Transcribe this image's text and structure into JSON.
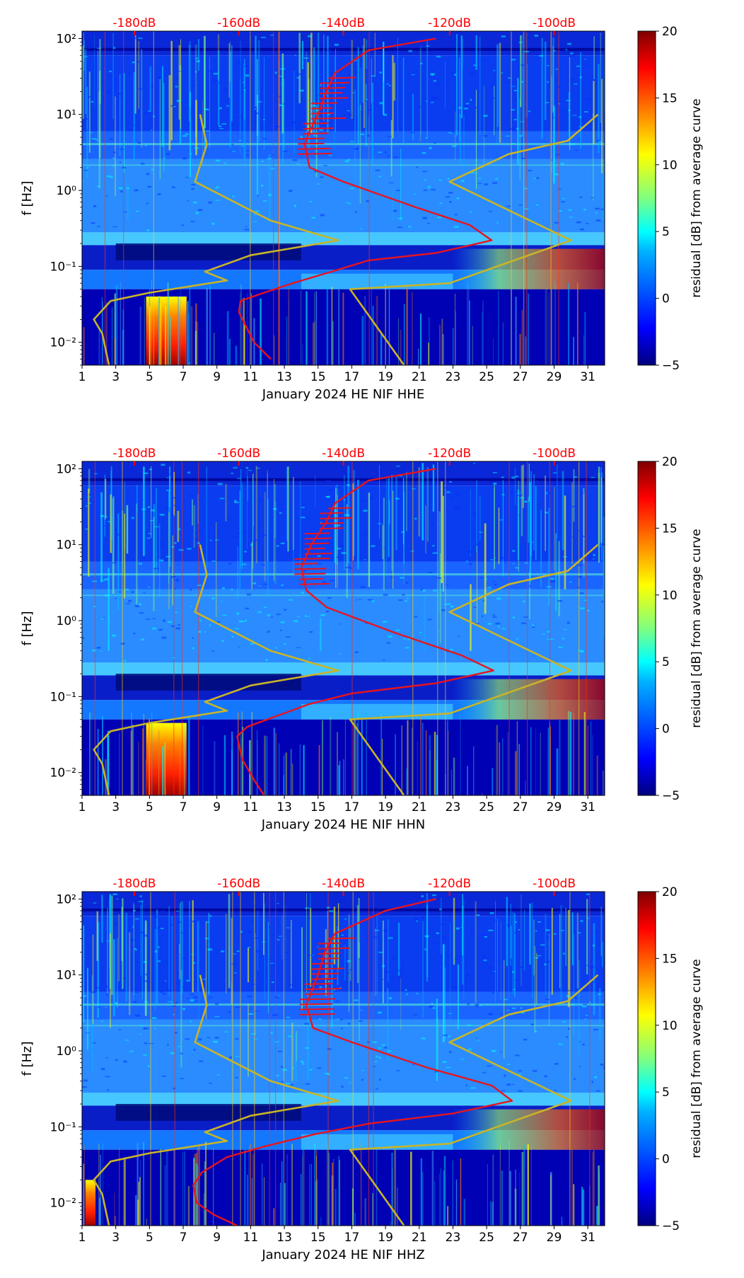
{
  "colors": {
    "jet": [
      "#00007f",
      "#0000ff",
      "#007fff",
      "#00ffff",
      "#7fff7f",
      "#ffff00",
      "#ff7f00",
      "#ff0000",
      "#7f0000"
    ],
    "noise_model": "#c8b428",
    "median_curve": "#e8141e",
    "db_axis": "#ff0000"
  },
  "chart_data": [
    {
      "type": "heatmap",
      "xlabel": "January 2024 HE NIF  HHE",
      "ylabel": "f [Hz]",
      "colorbar_label": "residual [dB] from average curve",
      "x_ticks": [
        1,
        3,
        5,
        7,
        9,
        11,
        13,
        15,
        17,
        19,
        21,
        23,
        25,
        27,
        29,
        31
      ],
      "x_range": [
        1,
        32
      ],
      "y_ticks": [
        "10⁻²",
        "10⁻¹",
        "10⁰",
        "10¹",
        "10²"
      ],
      "y_range": [
        0.005,
        125
      ],
      "y_scale": "log",
      "colorbar_ticks": [
        -5,
        0,
        5,
        10,
        15,
        20
      ],
      "colorbar_range": [
        -5,
        20
      ],
      "db_ticks": [
        "-180dB",
        "-160dB",
        "-140dB",
        "-120dB",
        "-100dB"
      ],
      "db_tick_days": [
        4.1,
        10.3,
        16.5,
        22.8,
        29.0
      ],
      "hot_events": [
        {
          "x": [
            4.8,
            7.2
          ],
          "y": [
            0.005,
            0.04
          ]
        }
      ],
      "noise_model_low": [
        [
          8,
          10
        ],
        [
          8.4,
          4
        ],
        [
          7.7,
          1.3
        ],
        [
          12.2,
          0.4
        ],
        [
          16.2,
          0.22
        ],
        [
          11,
          0.14
        ],
        [
          8.3,
          0.085
        ],
        [
          9.6,
          0.065
        ],
        [
          5,
          0.045
        ],
        [
          2.7,
          0.035
        ],
        [
          1.7,
          0.02
        ],
        [
          2.2,
          0.013
        ],
        [
          2.6,
          0.005
        ]
      ],
      "noise_model_high": [
        [
          31.6,
          10
        ],
        [
          29.8,
          4.5
        ],
        [
          26.3,
          3
        ],
        [
          22.8,
          1.3
        ],
        [
          30,
          0.22
        ],
        [
          22.8,
          0.06
        ],
        [
          16.9,
          0.05
        ],
        [
          20.1,
          0.005
        ]
      ],
      "median_curve": [
        [
          22,
          100
        ],
        [
          18,
          70
        ],
        [
          16,
          35
        ],
        [
          15.5,
          20
        ],
        [
          15,
          10
        ],
        [
          14.5,
          6
        ],
        [
          14.2,
          4
        ],
        [
          14.5,
          2
        ],
        [
          16.5,
          1.3
        ],
        [
          20.8,
          0.6
        ],
        [
          24,
          0.35
        ],
        [
          25.3,
          0.22
        ],
        [
          22,
          0.15
        ],
        [
          18,
          0.12
        ],
        [
          15.8,
          0.085
        ],
        [
          13.5,
          0.06
        ],
        [
          11.8,
          0.045
        ],
        [
          10.4,
          0.035
        ],
        [
          10.3,
          0.025
        ],
        [
          10.8,
          0.015
        ],
        [
          11.2,
          0.01
        ],
        [
          12.2,
          0.006
        ]
      ]
    },
    {
      "type": "heatmap",
      "xlabel": "January 2024 HE NIF  HHN",
      "ylabel": "f [Hz]",
      "colorbar_label": "residual [dB] from average curve",
      "x_ticks": [
        1,
        3,
        5,
        7,
        9,
        11,
        13,
        15,
        17,
        19,
        21,
        23,
        25,
        27,
        29,
        31
      ],
      "x_range": [
        1,
        32
      ],
      "y_ticks": [
        "10⁻²",
        "10⁻¹",
        "10⁰",
        "10¹",
        "10²"
      ],
      "y_range": [
        0.005,
        125
      ],
      "y_scale": "log",
      "colorbar_ticks": [
        -5,
        0,
        5,
        10,
        15,
        20
      ],
      "colorbar_range": [
        -5,
        20
      ],
      "db_ticks": [
        "-180dB",
        "-160dB",
        "-140dB",
        "-120dB",
        "-100dB"
      ],
      "db_tick_days": [
        4.1,
        10.3,
        16.5,
        22.8,
        29.0
      ],
      "hot_events": [
        {
          "x": [
            4.8,
            7.2
          ],
          "y": [
            0.005,
            0.045
          ]
        }
      ],
      "noise_model_low": [
        [
          8,
          10
        ],
        [
          8.4,
          4
        ],
        [
          7.7,
          1.3
        ],
        [
          12.2,
          0.4
        ],
        [
          16.2,
          0.22
        ],
        [
          11,
          0.14
        ],
        [
          8.3,
          0.085
        ],
        [
          9.6,
          0.065
        ],
        [
          5,
          0.045
        ],
        [
          2.7,
          0.035
        ],
        [
          1.7,
          0.02
        ],
        [
          2.2,
          0.013
        ],
        [
          2.6,
          0.005
        ]
      ],
      "noise_model_high": [
        [
          31.6,
          10
        ],
        [
          29.8,
          4.5
        ],
        [
          26.3,
          3
        ],
        [
          22.8,
          1.3
        ],
        [
          30,
          0.22
        ],
        [
          22.8,
          0.06
        ],
        [
          16.9,
          0.05
        ],
        [
          20.1,
          0.005
        ]
      ],
      "median_curve": [
        [
          22,
          100
        ],
        [
          18,
          70
        ],
        [
          16,
          35
        ],
        [
          15.5,
          20
        ],
        [
          14.6,
          10
        ],
        [
          14,
          5
        ],
        [
          14.3,
          2.5
        ],
        [
          15.5,
          1.5
        ],
        [
          19.5,
          0.7
        ],
        [
          23.5,
          0.35
        ],
        [
          25.4,
          0.22
        ],
        [
          22,
          0.15
        ],
        [
          17,
          0.11
        ],
        [
          14.5,
          0.08
        ],
        [
          12.5,
          0.055
        ],
        [
          10.8,
          0.04
        ],
        [
          10.2,
          0.03
        ],
        [
          10.5,
          0.015
        ],
        [
          11.2,
          0.008
        ],
        [
          11.8,
          0.005
        ]
      ]
    },
    {
      "type": "heatmap",
      "xlabel": "January 2024 HE NIF  HHZ",
      "ylabel": "f [Hz]",
      "colorbar_label": "residual [dB] from average curve",
      "x_ticks": [
        1,
        3,
        5,
        7,
        9,
        11,
        13,
        15,
        17,
        19,
        21,
        23,
        25,
        27,
        29,
        31
      ],
      "x_range": [
        1,
        32
      ],
      "y_ticks": [
        "10⁻²",
        "10⁻¹",
        "10⁰",
        "10¹",
        "10²"
      ],
      "y_range": [
        0.005,
        125
      ],
      "y_scale": "log",
      "colorbar_ticks": [
        -5,
        0,
        5,
        10,
        15,
        20
      ],
      "colorbar_range": [
        -5,
        20
      ],
      "db_ticks": [
        "-180dB",
        "-160dB",
        "-140dB",
        "-120dB",
        "-100dB"
      ],
      "db_tick_days": [
        4.1,
        10.3,
        16.5,
        22.8,
        29.0
      ],
      "hot_events": [
        {
          "x": [
            1.2,
            1.8
          ],
          "y": [
            0.005,
            0.02
          ]
        }
      ],
      "noise_model_low": [
        [
          8,
          10
        ],
        [
          8.4,
          4
        ],
        [
          7.7,
          1.3
        ],
        [
          12.2,
          0.4
        ],
        [
          16.2,
          0.22
        ],
        [
          11,
          0.14
        ],
        [
          8.3,
          0.085
        ],
        [
          9.6,
          0.065
        ],
        [
          5,
          0.045
        ],
        [
          2.7,
          0.035
        ],
        [
          1.7,
          0.02
        ],
        [
          2.2,
          0.013
        ],
        [
          2.6,
          0.005
        ]
      ],
      "noise_model_high": [
        [
          31.6,
          10
        ],
        [
          29.8,
          4.5
        ],
        [
          26.3,
          3
        ],
        [
          22.8,
          1.3
        ],
        [
          30,
          0.22
        ],
        [
          22.8,
          0.06
        ],
        [
          16.9,
          0.05
        ],
        [
          20.1,
          0.005
        ]
      ],
      "median_curve": [
        [
          22,
          100
        ],
        [
          19,
          70
        ],
        [
          16,
          35
        ],
        [
          15.4,
          20
        ],
        [
          15,
          10
        ],
        [
          14.6,
          6
        ],
        [
          14.3,
          4
        ],
        [
          14.7,
          2
        ],
        [
          17,
          1.3
        ],
        [
          21.5,
          0.6
        ],
        [
          25.3,
          0.35
        ],
        [
          26.5,
          0.22
        ],
        [
          23,
          0.15
        ],
        [
          18,
          0.11
        ],
        [
          14.8,
          0.08
        ],
        [
          11.8,
          0.055
        ],
        [
          9.6,
          0.04
        ],
        [
          8.1,
          0.025
        ],
        [
          7.6,
          0.017
        ],
        [
          7.8,
          0.01
        ],
        [
          8.8,
          0.007
        ],
        [
          10.2,
          0.005
        ]
      ]
    }
  ]
}
